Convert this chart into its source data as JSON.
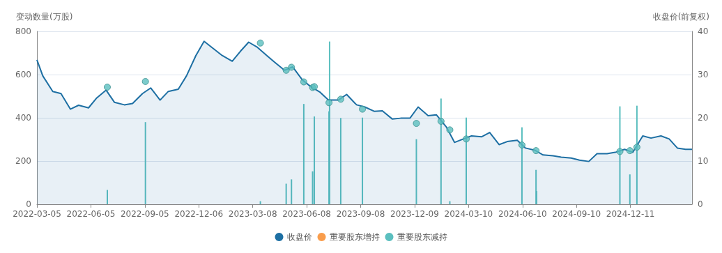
{
  "chart_data": {
    "type": "bar",
    "ylabel": "变动数量(万股)",
    "y2label": "收盘价(前复权)",
    "xlim": [
      "2022-03-05",
      "2025-03-26"
    ],
    "xticks": [
      "2022-03-05",
      "2022-06-05",
      "2022-09-05",
      "2022-12-06",
      "2023-03-08",
      "2023-06-08",
      "2023-09-08",
      "2023-12-09",
      "2024-03-10",
      "2024-06-10",
      "2024-09-10",
      "2024-12-11"
    ],
    "ylim": [
      0,
      800
    ],
    "yticks": [
      0,
      200,
      400,
      600,
      800
    ],
    "y2lim": [
      0,
      40
    ],
    "y2ticks": [
      0,
      10,
      20,
      30,
      40
    ],
    "grid": "y",
    "legend": "bottom",
    "series": [
      {
        "name": "收盘价",
        "type": "area",
        "axis": "y2",
        "color": "#1d6fa3",
        "x": [
          "2022-03-05",
          "2022-03-15",
          "2022-04-01",
          "2022-04-15",
          "2022-05-01",
          "2022-05-15",
          "2022-06-01",
          "2022-06-15",
          "2022-07-01",
          "2022-07-15",
          "2022-08-01",
          "2022-08-15",
          "2022-09-01",
          "2022-09-15",
          "2022-10-01",
          "2022-10-15",
          "2022-11-01",
          "2022-11-15",
          "2022-12-01",
          "2022-12-15",
          "2023-01-01",
          "2023-01-15",
          "2023-02-01",
          "2023-02-15",
          "2023-03-01",
          "2023-03-15",
          "2023-04-01",
          "2023-04-15",
          "2023-05-01",
          "2023-05-15",
          "2023-06-01",
          "2023-06-15",
          "2023-07-01",
          "2023-07-15",
          "2023-08-01",
          "2023-08-15",
          "2023-09-01",
          "2023-09-15",
          "2023-10-01",
          "2023-10-15",
          "2023-11-01",
          "2023-11-15",
          "2023-12-01",
          "2023-12-15",
          "2024-01-01",
          "2024-01-15",
          "2024-02-01",
          "2024-02-15",
          "2024-03-01",
          "2024-03-15",
          "2024-04-01",
          "2024-04-15",
          "2024-05-01",
          "2024-05-15",
          "2024-06-01",
          "2024-06-15",
          "2024-07-01",
          "2024-07-15",
          "2024-08-01",
          "2024-08-15",
          "2024-09-01",
          "2024-09-15",
          "2024-10-01",
          "2024-10-15",
          "2024-11-01",
          "2024-11-15",
          "2024-12-01",
          "2024-12-15",
          "2025-01-01",
          "2025-01-15",
          "2025-02-01",
          "2025-02-15",
          "2025-03-01",
          "2025-03-15",
          "2025-03-26"
        ],
        "values": [
          33.4,
          29.7,
          26.1,
          25.6,
          22.0,
          22.9,
          22.3,
          24.6,
          26.4,
          23.6,
          23.0,
          23.3,
          25.6,
          26.9,
          24.1,
          26.1,
          26.6,
          29.7,
          34.4,
          37.7,
          35.9,
          34.4,
          33.1,
          35.4,
          37.5,
          36.4,
          34.4,
          32.8,
          31.0,
          31.8,
          28.7,
          27.2,
          25.9,
          24.1,
          24.1,
          25.4,
          23.0,
          22.5,
          21.5,
          21.6,
          19.7,
          19.9,
          19.9,
          22.5,
          20.5,
          20.7,
          17.9,
          14.3,
          15.1,
          15.8,
          15.6,
          16.6,
          13.8,
          14.5,
          14.8,
          13.0,
          12.5,
          11.4,
          11.2,
          10.9,
          10.7,
          10.2,
          9.9,
          11.7,
          11.7,
          12.0,
          12.7,
          12.0,
          15.8,
          15.3,
          15.8,
          15.1,
          13.0,
          12.7,
          12.7
        ]
      },
      {
        "name": "重要股东增持",
        "type": "scatter",
        "axis": "y2",
        "color": "#f7851f",
        "marker": "circle"
      },
      {
        "name": "重要股东减持",
        "color": "#5bbfbf",
        "x": [
          "2022-07-03",
          "2022-09-06",
          "2023-03-21",
          "2023-05-04",
          "2023-05-13",
          "2023-06-03",
          "2023-06-18",
          "2023-06-21",
          "2023-07-16",
          "2023-07-17",
          "2023-08-05",
          "2023-09-11",
          "2023-12-12",
          "2024-01-23",
          "2024-02-07",
          "2024-03-06",
          "2024-06-09",
          "2024-07-03",
          "2024-07-04",
          "2024-11-23",
          "2024-12-10",
          "2024-12-22"
        ],
        "values": [
          66,
          380,
          14,
          95,
          115,
          464,
          152,
          406,
          430,
          753,
          399,
          401,
          301,
          489,
          14,
          401,
          356,
          159,
          61,
          453,
          138,
          456
        ]
      },
      {
        "type": "scatter",
        "axis": "y2",
        "color": "#5bbfbf",
        "marker": "circle",
        "x": [
          "2022-07-03",
          "2022-09-06",
          "2023-03-21",
          "2023-05-04",
          "2023-05-13",
          "2023-06-03",
          "2023-06-18",
          "2023-06-21",
          "2023-07-16",
          "2023-08-05",
          "2023-09-11",
          "2023-12-12",
          "2024-01-23",
          "2024-02-07",
          "2024-03-06",
          "2024-06-09",
          "2024-07-03",
          "2024-11-23",
          "2024-12-10",
          "2024-12-22"
        ],
        "values": [
          27.1,
          28.4,
          37.3,
          31.0,
          31.7,
          28.3,
          27.0,
          27.2,
          23.5,
          24.3,
          22.0,
          18.7,
          19.2,
          17.2,
          15.1,
          13.7,
          12.4,
          12.2,
          12.4,
          13.2
        ]
      }
    ]
  }
}
